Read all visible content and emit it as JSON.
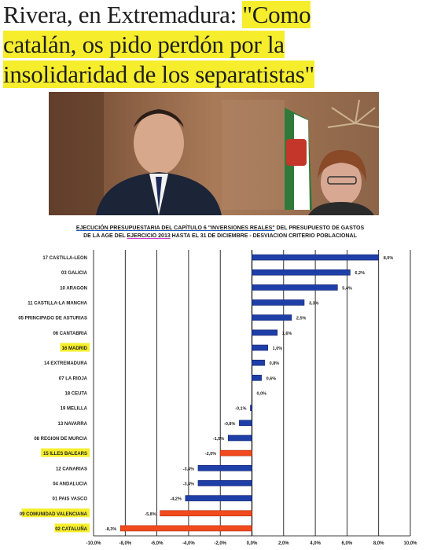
{
  "headline": {
    "part1": "Rivera, en Extremadura: ",
    "part2": "\"Como",
    "part3": "catalán, os pido perdón por la",
    "part4": "insolidaridad de los separatistas\""
  },
  "photo": {
    "description_icon": "person-photo"
  },
  "chart_title": {
    "line1_a": "EJECUCIÓN PRESUPUESTARIA DEL CAPÍTULO 6 \"INVERSIONES REALES\"",
    "line1_b": " DEL PRESUPUESTO DE GASTOS",
    "line2_a": "DE LA AGE DEL ",
    "line2_b": "EJERCICIO 2013",
    "line2_c": " HASTA EL 31 DE DICIEMBRE - DESVIACION CRITERIO POBLACIONAL"
  },
  "chart_data": {
    "type": "bar",
    "orientation": "horizontal",
    "categories": [
      "17 CASTILLA-LEON",
      "03 GALICIA",
      "10 ARAGON",
      "11 CASTILLA-LA MANCHA",
      "05 PRINCIPADO DE ASTURIAS",
      "06 CANTABRIA",
      "16 MADRID",
      "14 EXTREMADURA",
      "07 LA RIOJA",
      "18 CEUTA",
      "19 MELILLA",
      "13 NAVARRA",
      "08 REGION DE MURCIA",
      "15 ILLES BALEARS",
      "12 CANARIAS",
      "04 ANDALUCIA",
      "01 PAIS VASCO",
      "09 COMUNIDAD VALENCIANA",
      "02 CATALUÑA"
    ],
    "values": [
      8.0,
      6.2,
      5.4,
      3.3,
      2.5,
      1.6,
      1.0,
      0.8,
      0.6,
      0.0,
      -0.1,
      -0.8,
      -1.5,
      -2.0,
      -3.4,
      -3.4,
      -4.2,
      -5.8,
      -8.3
    ],
    "value_labels": [
      "8,0%",
      "6,2%",
      "5,4%",
      "3,3%",
      "2,5%",
      "1,6%",
      "1,0%",
      "0,8%",
      "0,6%",
      "0,0%",
      "-0,1%",
      "-0,8%",
      "-1,5%",
      "-2,0%",
      "-3,4%",
      "-3,4%",
      "-4,2%",
      "-5,8%",
      "-8,3%"
    ],
    "highlighted": [
      "16 MADRID",
      "15 ILLES BALEARS",
      "09 COMUNIDAD VALENCIANA",
      "02 CATALUÑA"
    ],
    "red_bars": [
      "15 ILLES BALEARS",
      "09 COMUNIDAD VALENCIANA",
      "02 CATALUÑA"
    ],
    "xlim": [
      -10,
      10
    ],
    "xticks": [
      -10,
      -8,
      -6,
      -4,
      -2,
      0,
      2,
      4,
      6,
      8,
      10
    ],
    "xtick_labels": [
      "-10,0%",
      "-8,0%",
      "-6,0%",
      "-4,0%",
      "-2,0%",
      "0,0%",
      "2,0%",
      "4,0%",
      "6,0%",
      "8,0%",
      "10,0%"
    ],
    "grid": "vertical",
    "colors": {
      "positive": "#1f3fa8",
      "highlight": "#f04a1e",
      "label_highlight": "#f6ee2c"
    }
  }
}
